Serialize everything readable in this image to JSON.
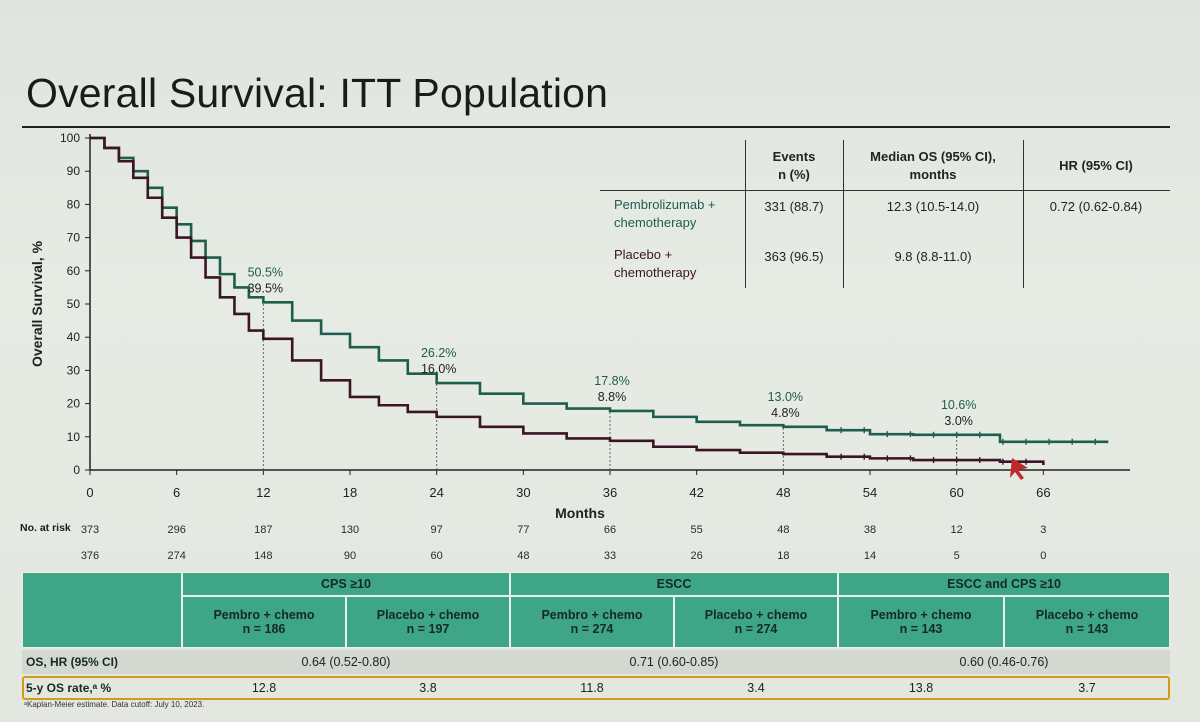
{
  "title": "Overall Survival: ITT Population",
  "chart_data": {
    "type": "line",
    "title": "",
    "xlabel": "Months",
    "ylabel": "Overall Survival, %",
    "xlim": [
      0,
      72
    ],
    "ylim": [
      0,
      100
    ],
    "x_ticks": [
      0,
      6,
      12,
      18,
      24,
      30,
      36,
      42,
      48,
      54,
      60,
      66
    ],
    "y_ticks": [
      0,
      10,
      20,
      30,
      40,
      50,
      60,
      70,
      80,
      90,
      100
    ],
    "series": [
      {
        "name": "Pembrolizumab + chemotherapy",
        "color": "#1f5d4f",
        "x": [
          0,
          1,
          2,
          3,
          4,
          5,
          6,
          7,
          8,
          9,
          10,
          11,
          12,
          14,
          16,
          18,
          20,
          22,
          24,
          27,
          30,
          33,
          36,
          39,
          42,
          45,
          48,
          51,
          54,
          57,
          60,
          63,
          66,
          70.5
        ],
        "y": [
          100,
          97,
          94,
          90,
          85,
          79,
          74,
          69,
          64,
          59,
          55,
          52,
          50.5,
          45,
          41,
          37,
          33,
          29,
          26.2,
          23,
          20,
          18.5,
          17.8,
          16,
          14.5,
          13.5,
          13.0,
          12,
          10.8,
          10.6,
          10.6,
          8.5,
          8.5,
          8.5
        ]
      },
      {
        "name": "Placebo + chemotherapy",
        "color": "#3a1526",
        "x": [
          0,
          1,
          2,
          3,
          4,
          5,
          6,
          7,
          8,
          9,
          10,
          11,
          12,
          14,
          16,
          18,
          20,
          22,
          24,
          27,
          30,
          33,
          36,
          39,
          42,
          45,
          48,
          51,
          54,
          57,
          60,
          63,
          66
        ],
        "y": [
          100,
          97,
          93,
          88,
          82,
          76,
          70,
          64,
          58,
          52,
          47,
          42,
          39.5,
          33,
          27,
          22,
          19.5,
          17.5,
          16.0,
          13,
          11,
          9.5,
          8.8,
          7,
          6,
          5.2,
          4.8,
          4,
          3.5,
          3.0,
          3.0,
          2.5,
          1.5
        ]
      }
    ],
    "annotations": [
      {
        "x": 12,
        "top": "50.5%",
        "bottom": "39.5%"
      },
      {
        "x": 24,
        "top": "26.2%",
        "bottom": "16.0%"
      },
      {
        "x": 36,
        "top": "17.8%",
        "bottom": "8.8%"
      },
      {
        "x": 48,
        "top": "13.0%",
        "bottom": "4.8%"
      },
      {
        "x": 60,
        "top": "10.6%",
        "bottom": "3.0%"
      }
    ],
    "grid": false
  },
  "summary_table": {
    "headers": [
      "",
      "Events\nn (%)",
      "Median OS (95% CI),\nmonths",
      "HR (95% CI)"
    ],
    "rows": [
      {
        "arm": "Pembrolizumab +\nchemotherapy",
        "events": "331 (88.7)",
        "median": "12.3 (10.5-14.0)",
        "hr": "0.72 (0.62-0.84)"
      },
      {
        "arm": "Placebo +\nchemotherapy",
        "events": "363 (96.5)",
        "median": "9.8 (8.8-11.0)",
        "hr": ""
      }
    ]
  },
  "risk": {
    "label": "No. at risk",
    "pembro": [
      "373",
      "296",
      "187",
      "130",
      "97",
      "77",
      "66",
      "55",
      "48",
      "38",
      "12",
      "3"
    ],
    "placebo": [
      "376",
      "274",
      "148",
      "90",
      "60",
      "48",
      "33",
      "26",
      "18",
      "14",
      "5",
      "0"
    ]
  },
  "subgroups": {
    "groups": [
      "CPS ≥10",
      "ESCC",
      "ESCC and CPS ≥10"
    ],
    "arms": [
      {
        "label": "Pembro + chemo",
        "n": "n = 186"
      },
      {
        "label": "Placebo + chemo",
        "n": "n = 197"
      },
      {
        "label": "Pembro + chemo",
        "n": "n = 274"
      },
      {
        "label": "Placebo + chemo",
        "n": "n = 274"
      },
      {
        "label": "Pembro + chemo",
        "n": "n = 143"
      },
      {
        "label": "Placebo + chemo",
        "n": "n = 143"
      }
    ],
    "hr_label": "OS, HR (95% CI)",
    "hr_values": [
      "0.64 (0.52-0.80)",
      "0.71 (0.60-0.85)",
      "0.60 (0.46-0.76)"
    ],
    "rate_label": "5-y OS rate,ᵃ %",
    "rate_values": [
      "12.8",
      "3.8",
      "11.8",
      "3.4",
      "13.8",
      "3.7"
    ]
  },
  "footnote": "ᵃKaplan-Meier estimate. Data cutoff: July 10, 2023.",
  "colors": {
    "pembro": "#1f5d4f",
    "placebo": "#3a1526",
    "teal_header": "#3ea586",
    "highlight": "#d19a1a"
  }
}
